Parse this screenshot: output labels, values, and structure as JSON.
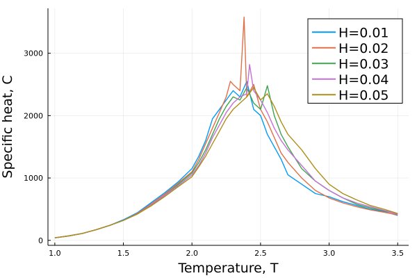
{
  "chart_data": {
    "type": "line",
    "title": "",
    "xlabel": "Temperature, T",
    "ylabel": "Specific heat, C",
    "xlim": [
      0.95,
      3.58
    ],
    "ylim": [
      -80,
      3720
    ],
    "x_ticks": [
      1.0,
      1.5,
      2.0,
      2.5,
      3.0,
      3.5
    ],
    "x_tick_labels": [
      "1.0",
      "1.5",
      "2.0",
      "2.5",
      "3.0",
      "3.5"
    ],
    "y_ticks": [
      0,
      1000,
      2000,
      3000
    ],
    "y_tick_labels": [
      "0",
      "1000",
      "2000",
      "3000"
    ],
    "grid": true,
    "legend_position": "top-right",
    "series": [
      {
        "name": "H=0.01",
        "color": "#009AFA",
        "x": [
          1.0,
          1.1,
          1.2,
          1.3,
          1.4,
          1.5,
          1.6,
          1.7,
          1.8,
          1.9,
          2.0,
          2.05,
          2.1,
          2.15,
          2.2,
          2.25,
          2.3,
          2.35,
          2.4,
          2.45,
          2.5,
          2.55,
          2.6,
          2.65,
          2.7,
          2.8,
          2.9,
          3.0,
          3.1,
          3.2,
          3.3,
          3.4,
          3.5
        ],
        "y": [
          40,
          70,
          110,
          170,
          240,
          330,
          440,
          600,
          760,
          940,
          1150,
          1350,
          1600,
          1950,
          2100,
          2250,
          2400,
          2300,
          2550,
          2100,
          2000,
          1700,
          1500,
          1300,
          1050,
          900,
          750,
          700,
          620,
          560,
          500,
          460,
          400
        ]
      },
      {
        "name": "H=0.02",
        "color": "#E26F46",
        "x": [
          1.0,
          1.1,
          1.2,
          1.3,
          1.4,
          1.5,
          1.6,
          1.7,
          1.8,
          1.9,
          2.0,
          2.05,
          2.1,
          2.15,
          2.2,
          2.25,
          2.28,
          2.3,
          2.35,
          2.38,
          2.4,
          2.45,
          2.5,
          2.55,
          2.6,
          2.65,
          2.7,
          2.8,
          2.9,
          3.0,
          3.1,
          3.2,
          3.3,
          3.4,
          3.5
        ],
        "y": [
          40,
          70,
          110,
          170,
          240,
          320,
          430,
          580,
          740,
          920,
          1100,
          1300,
          1550,
          1800,
          2050,
          2300,
          2550,
          2500,
          2400,
          3580,
          2300,
          2500,
          2100,
          1900,
          1650,
          1400,
          1250,
          1000,
          800,
          680,
          600,
          540,
          490,
          450,
          410
        ]
      },
      {
        "name": "H=0.03",
        "color": "#3EA44E",
        "x": [
          1.0,
          1.1,
          1.2,
          1.3,
          1.4,
          1.5,
          1.6,
          1.7,
          1.8,
          1.9,
          2.0,
          2.05,
          2.1,
          2.15,
          2.2,
          2.25,
          2.3,
          2.35,
          2.4,
          2.45,
          2.5,
          2.55,
          2.6,
          2.65,
          2.7,
          2.8,
          2.9,
          3.0,
          3.1,
          3.2,
          3.3,
          3.4,
          3.5
        ],
        "y": [
          40,
          70,
          110,
          170,
          240,
          320,
          420,
          560,
          720,
          900,
          1080,
          1250,
          1450,
          1700,
          1950,
          2150,
          2300,
          2250,
          2450,
          2200,
          2100,
          2480,
          2000,
          1700,
          1500,
          1150,
          950,
          800,
          680,
          580,
          520,
          470,
          430
        ]
      },
      {
        "name": "H=0.04",
        "color": "#C271D2",
        "x": [
          1.0,
          1.1,
          1.2,
          1.3,
          1.4,
          1.5,
          1.6,
          1.7,
          1.8,
          1.9,
          2.0,
          2.05,
          2.1,
          2.15,
          2.2,
          2.25,
          2.3,
          2.35,
          2.4,
          2.42,
          2.45,
          2.5,
          2.55,
          2.6,
          2.65,
          2.7,
          2.8,
          2.9,
          3.0,
          3.1,
          3.2,
          3.3,
          3.4,
          3.5
        ],
        "y": [
          40,
          70,
          110,
          170,
          240,
          320,
          420,
          560,
          720,
          880,
          1050,
          1200,
          1400,
          1650,
          1850,
          2050,
          2200,
          2300,
          2350,
          2820,
          2400,
          2250,
          2050,
          1800,
          1600,
          1450,
          1200,
          950,
          800,
          680,
          600,
          540,
          480,
          420
        ]
      },
      {
        "name": "H=0.05",
        "color": "#AC8E18",
        "x": [
          1.0,
          1.1,
          1.2,
          1.3,
          1.4,
          1.5,
          1.6,
          1.7,
          1.8,
          1.9,
          2.0,
          2.05,
          2.1,
          2.15,
          2.2,
          2.25,
          2.3,
          2.35,
          2.4,
          2.45,
          2.5,
          2.55,
          2.6,
          2.65,
          2.7,
          2.8,
          2.9,
          3.0,
          3.1,
          3.2,
          3.3,
          3.4,
          3.5
        ],
        "y": [
          40,
          70,
          110,
          170,
          240,
          320,
          420,
          550,
          700,
          860,
          1020,
          1180,
          1350,
          1550,
          1750,
          1950,
          2100,
          2200,
          2300,
          2450,
          2250,
          2350,
          2150,
          1900,
          1700,
          1450,
          1150,
          900,
          750,
          650,
          560,
          500,
          430
        ]
      }
    ]
  }
}
